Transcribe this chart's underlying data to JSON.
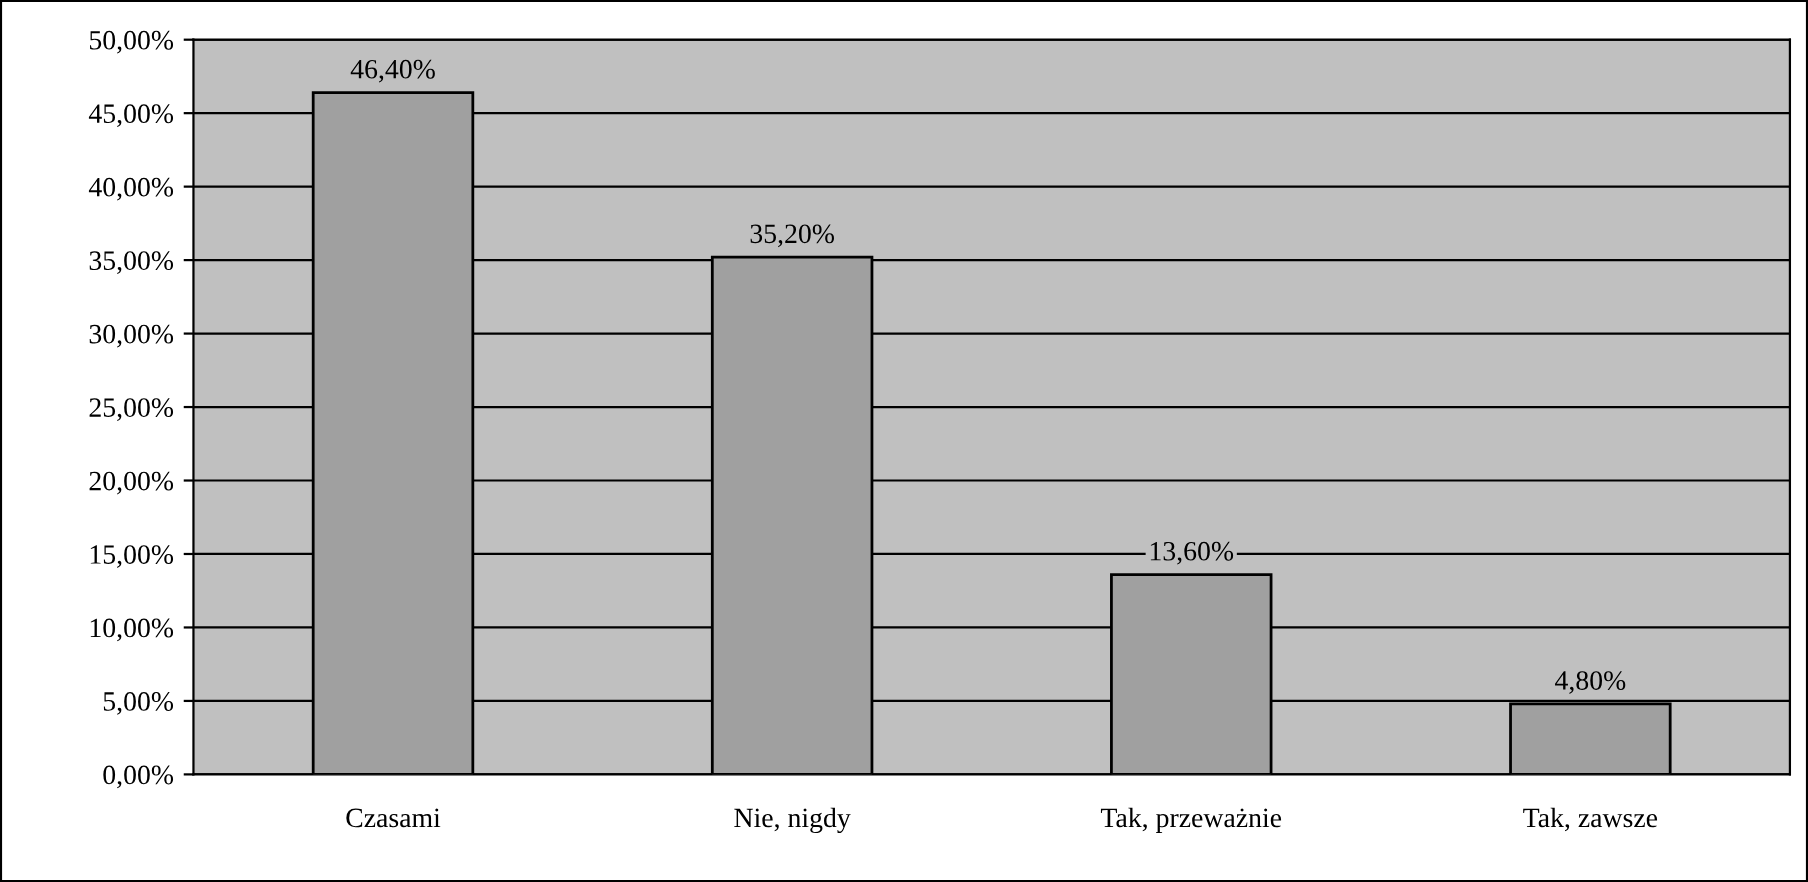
{
  "chart_data": {
    "type": "bar",
    "categories": [
      "Czasami",
      "Nie, nigdy",
      "Tak, przeważnie",
      "Tak, zawsze"
    ],
    "values": [
      46.4,
      35.2,
      13.6,
      4.8
    ],
    "value_labels": [
      "46,40%",
      "35,20%",
      "13,60%",
      "4,80%"
    ],
    "color": "#a0a0a0",
    "ylim": [
      0,
      50
    ],
    "yticks": [
      {
        "value": 0,
        "label": "0,00%"
      },
      {
        "value": 5,
        "label": "5,00%"
      },
      {
        "value": 10,
        "label": "10,00%"
      },
      {
        "value": 15,
        "label": "15,00%"
      },
      {
        "value": 20,
        "label": "20,00%"
      },
      {
        "value": 25,
        "label": "25,00%"
      },
      {
        "value": 30,
        "label": "30,00%"
      },
      {
        "value": 35,
        "label": "35,00%"
      },
      {
        "value": 40,
        "label": "40,00%"
      },
      {
        "value": 45,
        "label": "45,00%"
      },
      {
        "value": 50,
        "label": "50,00%"
      }
    ],
    "grid": "y",
    "legend": false
  }
}
